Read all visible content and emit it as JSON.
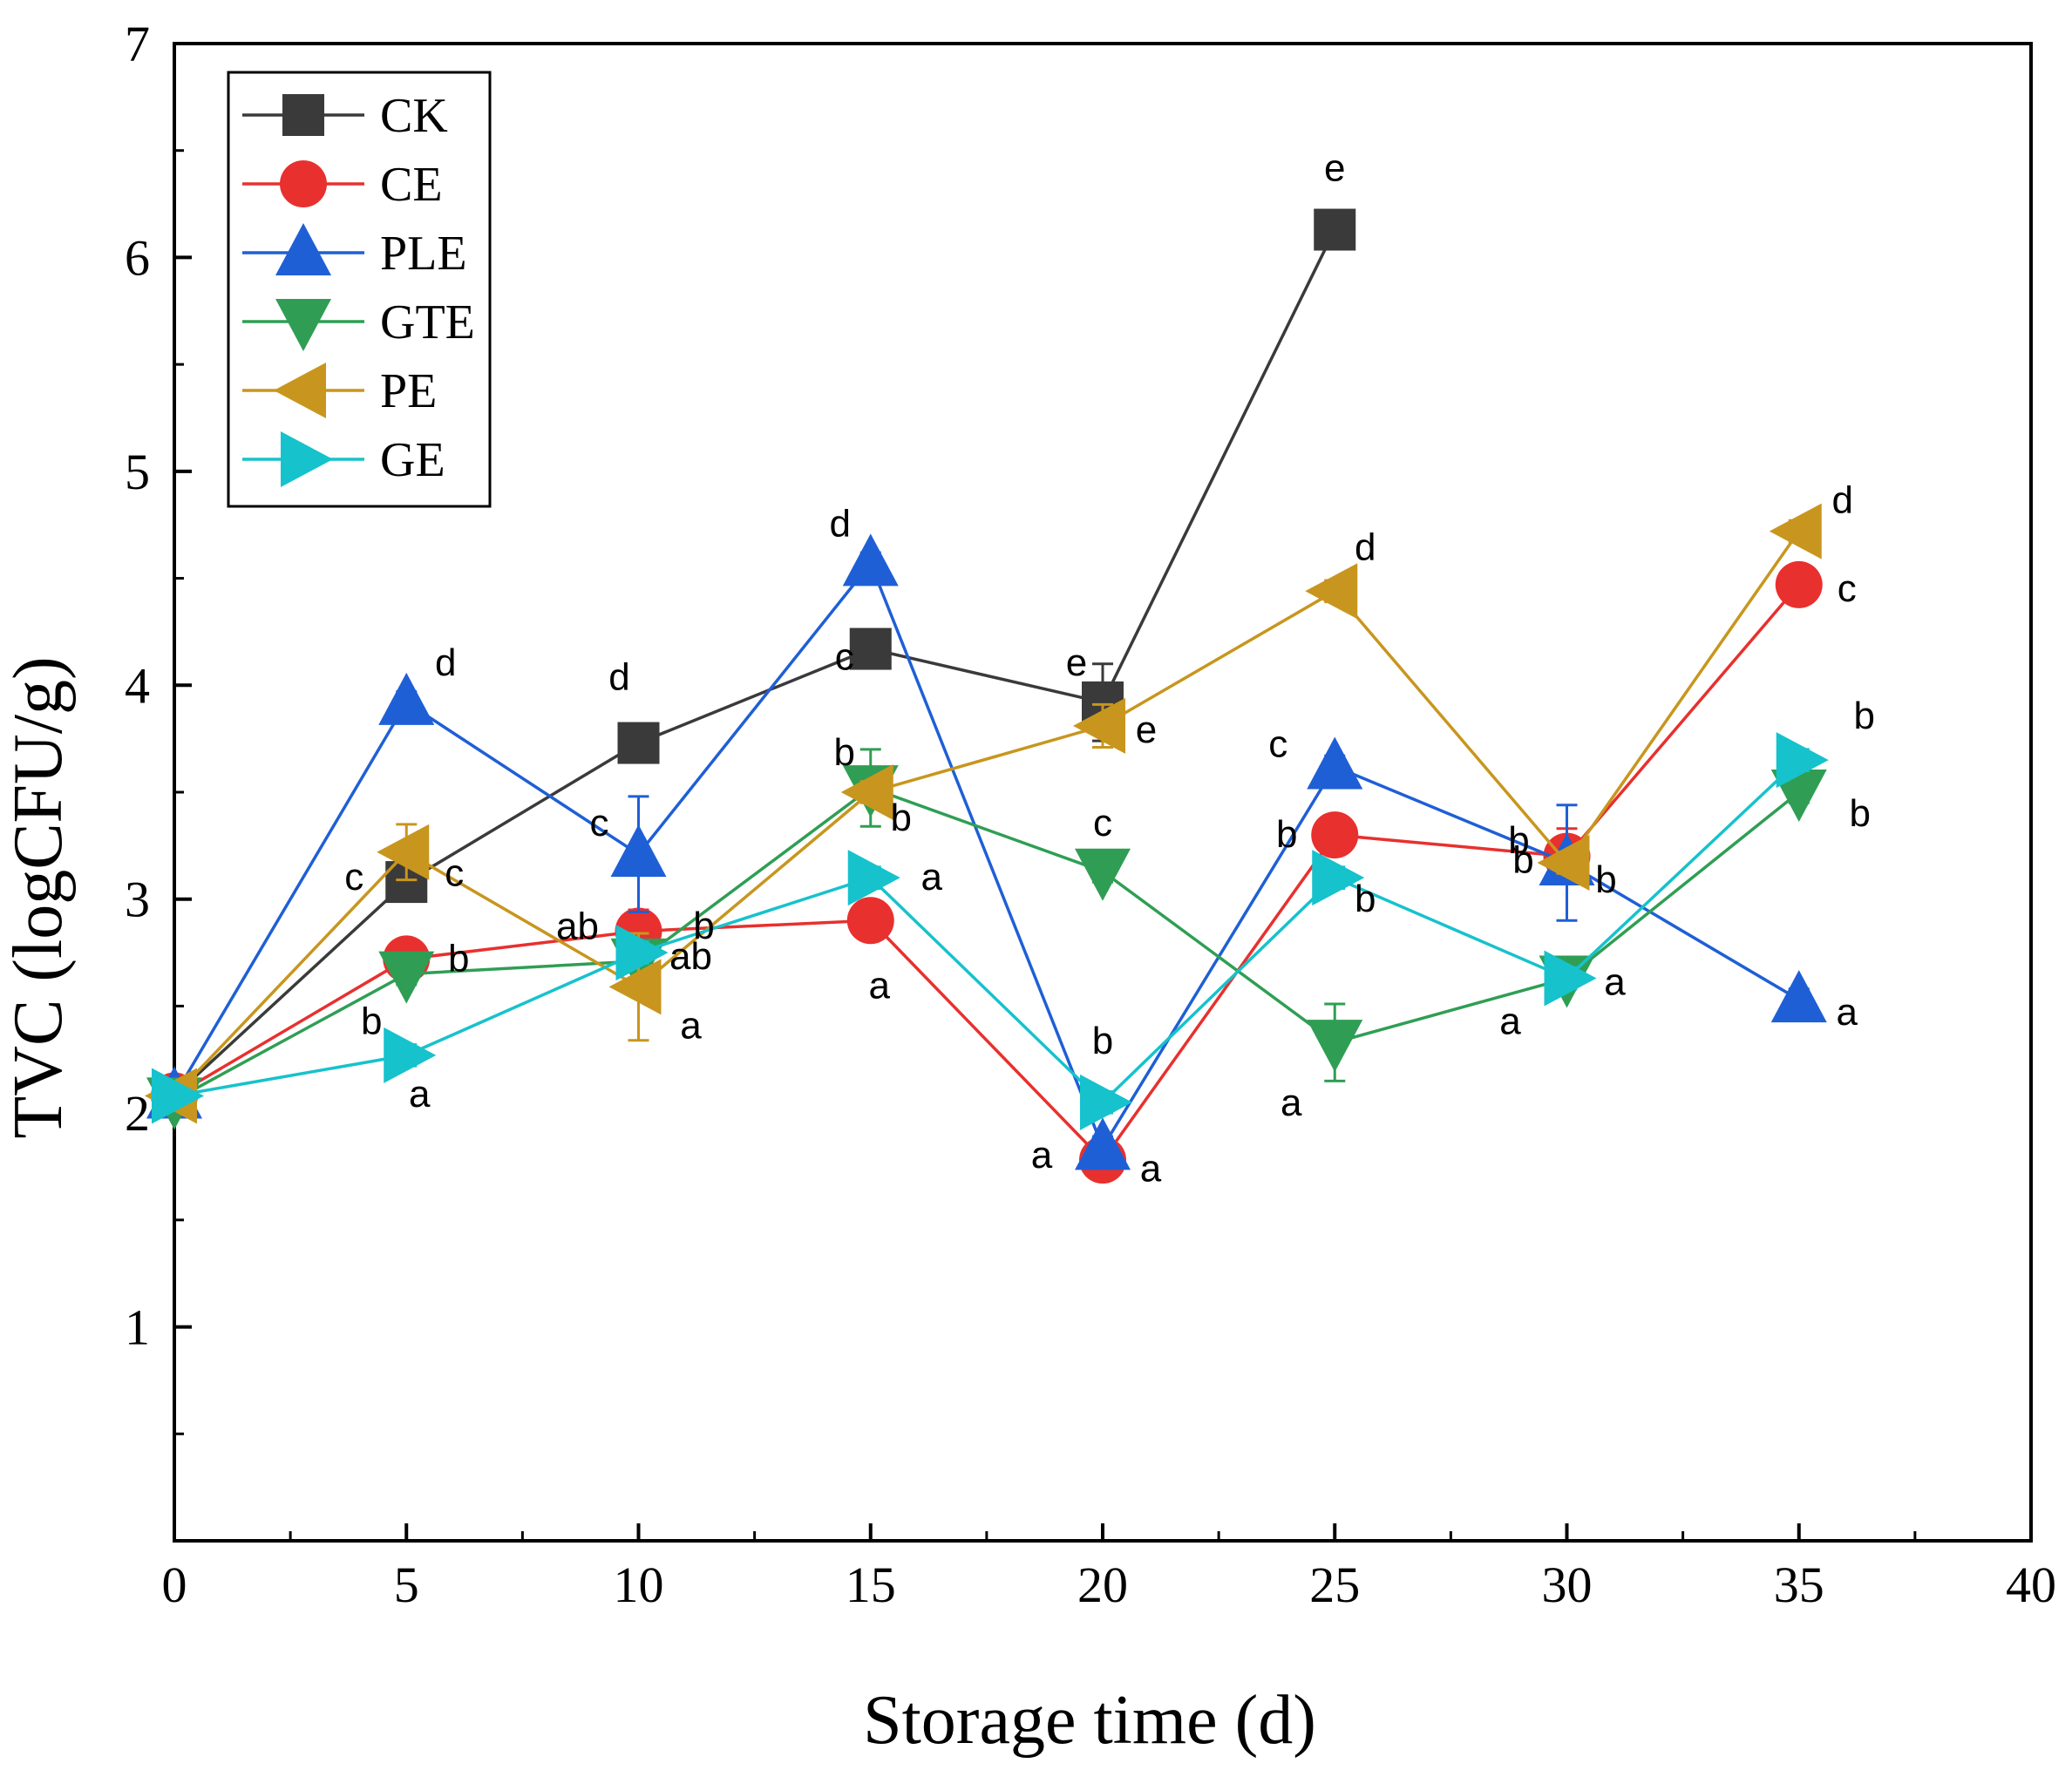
{
  "chart_data": {
    "type": "line",
    "xlabel": "Storage time (d)",
    "ylabel": "TVC (logCFU/g)",
    "xlim": [
      0,
      40
    ],
    "ylim": [
      0,
      7
    ],
    "x_ticks": [
      "0",
      "5",
      "10",
      "15",
      "20",
      "25",
      "30",
      "35",
      "40"
    ],
    "y_ticks": [
      "1",
      "2",
      "3",
      "4",
      "5",
      "6",
      "7"
    ],
    "grid": false,
    "legend_position": "top-left",
    "series": [
      {
        "name": "CK",
        "color": "#3a3a3a",
        "marker": "square",
        "x": [
          0,
          5,
          10,
          15,
          20,
          25
        ],
        "y": [
          2.08,
          3.08,
          3.73,
          4.17,
          3.92,
          6.13
        ],
        "err": [
          0.02,
          0.05,
          0.05,
          0.05,
          0.18,
          0.04
        ],
        "labels": [
          "",
          "c",
          "d",
          "c",
          "e",
          "e"
        ]
      },
      {
        "name": "CE",
        "color": "#e8302e",
        "marker": "circle",
        "x": [
          0,
          5,
          10,
          15,
          20,
          25,
          30,
          35
        ],
        "y": [
          2.08,
          2.72,
          2.85,
          2.9,
          1.78,
          3.3,
          3.2,
          4.47
        ],
        "err": [
          0.02,
          0.05,
          0.1,
          0.05,
          0.05,
          0.08,
          0.13,
          0.05
        ],
        "labels": [
          "",
          "b",
          "ab",
          "a",
          "a",
          "b",
          "b",
          "c"
        ]
      },
      {
        "name": "PLE",
        "color": "#1f5fd6",
        "marker": "triangle-up",
        "x": [
          0,
          5,
          10,
          15,
          20,
          25,
          30,
          35
        ],
        "y": [
          2.08,
          3.92,
          3.21,
          4.57,
          1.84,
          3.62,
          3.17,
          2.53
        ],
        "err": [
          0.02,
          0.05,
          0.27,
          0.05,
          0.05,
          0.05,
          0.27,
          0.05
        ],
        "labels": [
          "",
          "d",
          "c",
          "d",
          "a",
          "c",
          "b",
          "a"
        ]
      },
      {
        "name": "GTE",
        "color": "#2f9e54",
        "marker": "triangle-down",
        "x": [
          0,
          5,
          10,
          15,
          20,
          25,
          30,
          35
        ],
        "y": [
          2.06,
          2.65,
          2.71,
          3.52,
          3.13,
          2.33,
          2.63,
          3.5
        ],
        "err": [
          0.02,
          0.05,
          0.05,
          0.18,
          0.05,
          0.18,
          0.05,
          0.05
        ],
        "labels": [
          "",
          "b",
          "b",
          "b",
          "c",
          "a",
          "a",
          "b"
        ]
      },
      {
        "name": "PE",
        "color": "#c8961e",
        "marker": "triangle-left",
        "x": [
          0,
          5,
          10,
          15,
          20,
          25,
          30,
          35
        ],
        "y": [
          2.08,
          3.22,
          2.59,
          3.5,
          3.81,
          4.44,
          3.17,
          4.72
        ],
        "err": [
          0.02,
          0.13,
          0.25,
          0.05,
          0.1,
          0.05,
          0.05,
          0.05
        ],
        "labels": [
          "",
          "c",
          "a",
          "b",
          "e",
          "d",
          "b",
          "d"
        ]
      },
      {
        "name": "GE",
        "color": "#16c2cc",
        "marker": "triangle-right",
        "x": [
          0,
          5,
          10,
          15,
          20,
          25,
          30,
          35
        ],
        "y": [
          2.08,
          2.27,
          2.75,
          3.1,
          2.05,
          3.1,
          2.63,
          3.65
        ],
        "err": [
          0.02,
          0.05,
          0.05,
          0.05,
          0.05,
          0.05,
          0.05,
          0.05
        ],
        "labels": [
          "",
          "a",
          "ab",
          "a",
          "b",
          "b",
          "a",
          "b"
        ]
      }
    ]
  }
}
